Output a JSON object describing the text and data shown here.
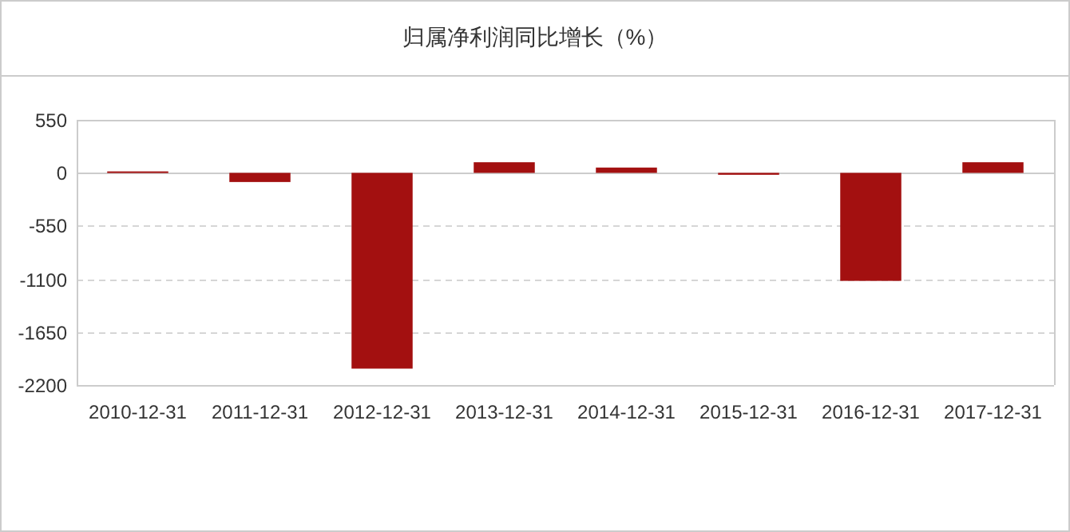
{
  "chart_data": {
    "type": "bar",
    "title": "归属净利润同比增长（%）",
    "categories": [
      "2010-12-31",
      "2011-12-31",
      "2012-12-31",
      "2013-12-31",
      "2014-12-31",
      "2015-12-31",
      "2016-12-31",
      "2017-12-31"
    ],
    "values": [
      15,
      -95,
      -2030,
      110,
      55,
      -20,
      -1120,
      110
    ],
    "color": "#a31010",
    "ylim": [
      -2200,
      550
    ],
    "yticks": [
      -2200,
      -1650,
      -1100,
      -550,
      0,
      550
    ],
    "grid": "y"
  }
}
